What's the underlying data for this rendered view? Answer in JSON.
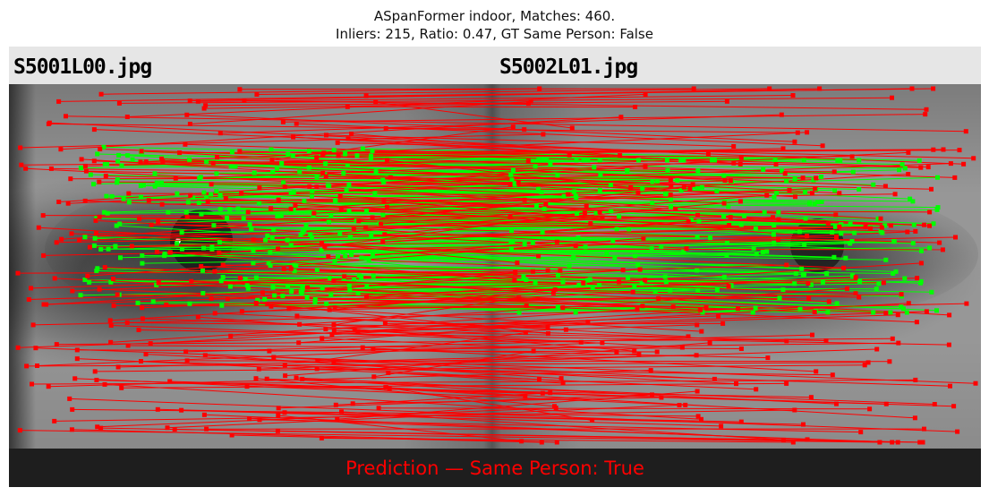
{
  "figure": {
    "title_line1": "ASpanFormer indoor, Matches: 460.",
    "title_line2": "Inliers: 215, Ratio: 0.47, GT Same Person: False",
    "left_image_name": "S5001L00.jpg",
    "right_image_name": "S5002L01.jpg",
    "prediction_text": "Prediction — Same Person: True",
    "stats": {
      "matches": 460,
      "inliers": 215,
      "ratio": 0.47,
      "gt_same_person": false,
      "predicted_same_person": true
    },
    "colors": {
      "inlier": "#00ff00",
      "outlier": "#ff0000",
      "prediction_text": "#ff0000",
      "header_band": "#e6e6e6",
      "footer_band": "#1e1e1e"
    }
  }
}
